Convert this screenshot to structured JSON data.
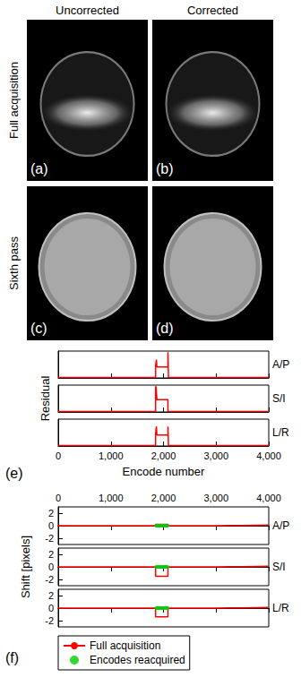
{
  "figure": {
    "column_titles": [
      "Uncorrected",
      "Corrected"
    ],
    "row_titles": [
      "Full acquisition",
      "Sixth pass"
    ],
    "image_labels": [
      [
        "(a)",
        "(b)"
      ],
      [
        "(c)",
        "(d)"
      ]
    ]
  },
  "chart_data": [
    {
      "type": "line",
      "label": "(e)",
      "ylabel": "Residual",
      "xlabel": "Encode number",
      "xlim": [
        0,
        4000
      ],
      "xticks": [
        0,
        1000,
        2000,
        3000,
        4000
      ],
      "tick_labels": "x",
      "grid": false,
      "panels": [
        {
          "title": "A/P",
          "ylim": [
            0,
            1.1
          ],
          "yticks": [],
          "series": [
            {
              "color": "#ff0000",
              "line_style": "solid",
              "x": [
                0,
                1000,
                1850,
                1850,
                1865,
                1875,
                2085,
                2085,
                2095,
                2095,
                3000,
                4000
              ],
              "values": [
                0.02,
                0.02,
                0.02,
                0.5,
                0.75,
                0.45,
                0.45,
                1.05,
                1.05,
                0.02,
                0.02,
                0.02
              ]
            }
          ]
        },
        {
          "title": "S/I",
          "ylim": [
            0,
            1.1
          ],
          "yticks": [],
          "series": [
            {
              "color": "#ff0000",
              "line_style": "solid",
              "x": [
                0,
                1000,
                1850,
                1850,
                1860,
                1875,
                2085,
                2085,
                3000,
                4000
              ],
              "values": [
                0.02,
                0.02,
                0.02,
                1.05,
                1.0,
                0.5,
                0.5,
                0.02,
                0.02,
                0.02
              ]
            }
          ]
        },
        {
          "title": "L/R",
          "ylim": [
            0,
            1.1
          ],
          "yticks": [],
          "series": [
            {
              "color": "#ff0000",
              "line_style": "solid",
              "x": [
                0,
                1000,
                1850,
                1850,
                1865,
                1875,
                2085,
                2085,
                2095,
                2095,
                3000,
                4000
              ],
              "values": [
                0.02,
                0.02,
                0.02,
                0.5,
                0.8,
                0.45,
                0.45,
                0.8,
                0.8,
                0.02,
                0.02,
                0.02
              ]
            }
          ]
        }
      ]
    },
    {
      "type": "line",
      "label": "(f)",
      "ylabel": "Shift [pixels]",
      "xlim": [
        0,
        4000
      ],
      "xticks": [
        0,
        1000,
        2000,
        3000,
        4000
      ],
      "grid": false,
      "legend": "bottom",
      "panels": [
        {
          "title": "A/P",
          "ylim": [
            -3,
            3
          ],
          "yticks": [
            -2,
            0,
            2
          ],
          "series": [
            {
              "name": "Full acquisition",
              "type": "line",
              "color": "#ff0000",
              "line_style": "solid",
              "x": [
                0,
                1000,
                1850,
                1850,
                2085,
                2085,
                3000,
                3500,
                4000
              ],
              "values": [
                0,
                0,
                0,
                0.2,
                0.2,
                0,
                0,
                0.05,
                0.1
              ]
            },
            {
              "name": "Encodes reacquired",
              "type": "scatter",
              "color": "#00cc00",
              "marker": "circle",
              "x": [
                1860,
                1880,
                1900,
                1920,
                1940,
                1960,
                1980,
                2000,
                2020,
                2040,
                2060,
                2080
              ],
              "values": [
                0,
                0,
                0,
                0,
                0,
                0,
                0,
                0,
                0,
                0,
                0,
                0
              ]
            }
          ]
        },
        {
          "title": "S/I",
          "ylim": [
            -3,
            3
          ],
          "yticks": [
            -2,
            0,
            2
          ],
          "series": [
            {
              "name": "Full acquisition",
              "type": "line",
              "color": "#ff0000",
              "line_style": "solid",
              "x": [
                0,
                1000,
                1850,
                1850,
                2085,
                2085,
                3000,
                3500,
                4000
              ],
              "values": [
                0,
                0,
                0,
                -1.5,
                -1.5,
                0,
                0,
                0.05,
                0.1
              ]
            },
            {
              "name": "Encodes reacquired",
              "type": "scatter",
              "color": "#00cc00",
              "marker": "circle",
              "x": [
                1860,
                1880,
                1900,
                1920,
                1940,
                1960,
                1980,
                2000,
                2020,
                2040,
                2060,
                2080
              ],
              "values": [
                0,
                0,
                0,
                0,
                0,
                0,
                0,
                0,
                0,
                0,
                0,
                0
              ]
            }
          ]
        },
        {
          "title": "L/R",
          "ylim": [
            -3,
            3
          ],
          "yticks": [
            -2,
            0,
            2
          ],
          "series": [
            {
              "name": "Full acquisition",
              "type": "line",
              "color": "#ff0000",
              "line_style": "solid",
              "x": [
                0,
                1000,
                1850,
                1850,
                2085,
                2085,
                3000,
                3500,
                4000
              ],
              "values": [
                0,
                0,
                0,
                -1.4,
                -1.4,
                0,
                0,
                0.05,
                0.1
              ]
            },
            {
              "name": "Encodes reacquired",
              "type": "scatter",
              "color": "#00cc00",
              "marker": "circle",
              "x": [
                1860,
                1880,
                1900,
                1920,
                1940,
                1960,
                1980,
                2000,
                2020,
                2040,
                2060,
                2080
              ],
              "values": [
                0,
                0,
                0,
                0,
                0,
                0,
                0,
                0,
                0,
                0,
                0,
                0
              ]
            }
          ]
        }
      ]
    }
  ]
}
